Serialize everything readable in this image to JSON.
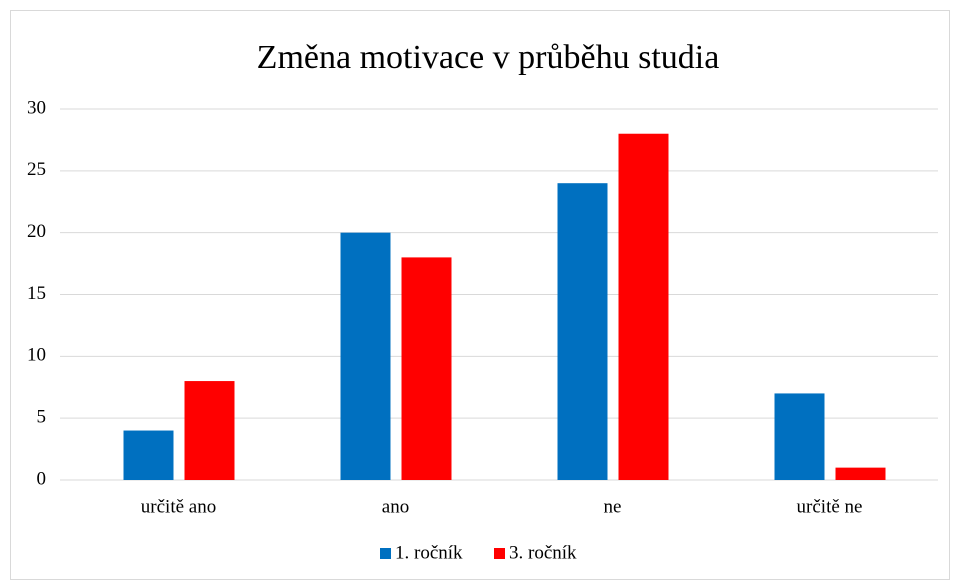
{
  "chart_data": {
    "type": "bar",
    "title": "Změna motivace v průběhu studia",
    "categories": [
      "určitě ano",
      "ano",
      "ne",
      "určitě ne"
    ],
    "series": [
      {
        "name": "1. ročník",
        "color": "#0070c0",
        "values": [
          4,
          20,
          24,
          7
        ]
      },
      {
        "name": "3. ročník",
        "color": "#ff0000",
        "values": [
          8,
          18,
          28,
          1
        ]
      }
    ],
    "ylim": [
      0,
      30
    ],
    "yticks": [
      0,
      5,
      10,
      15,
      20,
      25,
      30
    ],
    "grid": true,
    "legend": "bottom"
  }
}
